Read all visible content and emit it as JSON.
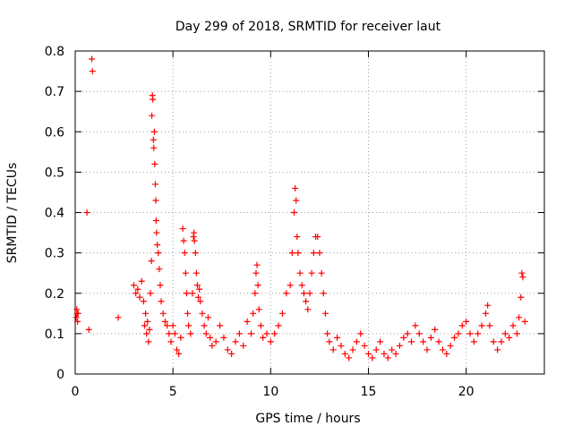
{
  "chart_data": {
    "type": "scatter",
    "title": "Day 299 of 2018, SRMTID for receiver laut",
    "xlabel": "GPS time / hours",
    "ylabel": "SRMTID / TECUs",
    "xlim": [
      0,
      24
    ],
    "ylim": [
      0,
      0.8
    ],
    "xticks": [
      "0",
      "5",
      "10",
      "15",
      "20"
    ],
    "xtick_values": [
      0,
      5,
      10,
      15,
      20
    ],
    "yticks": [
      "0",
      "0.1",
      "0.2",
      "0.3",
      "0.4",
      "0.5",
      "0.6",
      "0.7",
      "0.8"
    ],
    "ytick_values": [
      0,
      0.1,
      0.2,
      0.3,
      0.4,
      0.5,
      0.6,
      0.7,
      0.8
    ],
    "grid": true,
    "marker": "+",
    "color": "#ff0000",
    "series": [
      {
        "name": "SRMTID",
        "points": [
          [
            0.05,
            0.14
          ],
          [
            0.08,
            0.16
          ],
          [
            0.1,
            0.15
          ],
          [
            0.12,
            0.13
          ],
          [
            0.15,
            0.15
          ],
          [
            0.6,
            0.4
          ],
          [
            0.7,
            0.11
          ],
          [
            0.85,
            0.78
          ],
          [
            0.88,
            0.75
          ],
          [
            2.2,
            0.14
          ],
          [
            3.0,
            0.22
          ],
          [
            3.1,
            0.2
          ],
          [
            3.2,
            0.21
          ],
          [
            3.3,
            0.19
          ],
          [
            3.4,
            0.23
          ],
          [
            3.5,
            0.18
          ],
          [
            3.55,
            0.12
          ],
          [
            3.6,
            0.15
          ],
          [
            3.65,
            0.1
          ],
          [
            3.7,
            0.13
          ],
          [
            3.75,
            0.08
          ],
          [
            3.8,
            0.11
          ],
          [
            3.85,
            0.2
          ],
          [
            3.9,
            0.28
          ],
          [
            3.92,
            0.64
          ],
          [
            3.95,
            0.69
          ],
          [
            3.97,
            0.68
          ],
          [
            4.0,
            0.58
          ],
          [
            4.02,
            0.56
          ],
          [
            4.05,
            0.6
          ],
          [
            4.07,
            0.52
          ],
          [
            4.1,
            0.47
          ],
          [
            4.12,
            0.43
          ],
          [
            4.14,
            0.38
          ],
          [
            4.16,
            0.35
          ],
          [
            4.2,
            0.32
          ],
          [
            4.25,
            0.3
          ],
          [
            4.3,
            0.26
          ],
          [
            4.35,
            0.22
          ],
          [
            4.4,
            0.18
          ],
          [
            4.5,
            0.15
          ],
          [
            4.6,
            0.13
          ],
          [
            4.7,
            0.12
          ],
          [
            4.8,
            0.1
          ],
          [
            4.9,
            0.08
          ],
          [
            5.0,
            0.12
          ],
          [
            5.1,
            0.1
          ],
          [
            5.2,
            0.06
          ],
          [
            5.3,
            0.05
          ],
          [
            5.4,
            0.09
          ],
          [
            5.5,
            0.36
          ],
          [
            5.55,
            0.33
          ],
          [
            5.6,
            0.3
          ],
          [
            5.65,
            0.25
          ],
          [
            5.7,
            0.2
          ],
          [
            5.75,
            0.15
          ],
          [
            5.8,
            0.12
          ],
          [
            5.9,
            0.1
          ],
          [
            6.0,
            0.2
          ],
          [
            6.05,
            0.34
          ],
          [
            6.08,
            0.35
          ],
          [
            6.1,
            0.33
          ],
          [
            6.15,
            0.3
          ],
          [
            6.2,
            0.25
          ],
          [
            6.25,
            0.22
          ],
          [
            6.3,
            0.19
          ],
          [
            6.35,
            0.21
          ],
          [
            6.4,
            0.18
          ],
          [
            6.5,
            0.15
          ],
          [
            6.6,
            0.12
          ],
          [
            6.7,
            0.1
          ],
          [
            6.8,
            0.14
          ],
          [
            6.9,
            0.09
          ],
          [
            7.0,
            0.07
          ],
          [
            7.2,
            0.08
          ],
          [
            7.4,
            0.12
          ],
          [
            7.6,
            0.09
          ],
          [
            7.8,
            0.06
          ],
          [
            8.0,
            0.05
          ],
          [
            8.2,
            0.08
          ],
          [
            8.4,
            0.1
          ],
          [
            8.6,
            0.07
          ],
          [
            8.8,
            0.13
          ],
          [
            9.0,
            0.1
          ],
          [
            9.1,
            0.15
          ],
          [
            9.2,
            0.2
          ],
          [
            9.25,
            0.25
          ],
          [
            9.3,
            0.27
          ],
          [
            9.35,
            0.22
          ],
          [
            9.4,
            0.16
          ],
          [
            9.5,
            0.12
          ],
          [
            9.6,
            0.09
          ],
          [
            9.8,
            0.1
          ],
          [
            10.0,
            0.08
          ],
          [
            10.2,
            0.1
          ],
          [
            10.4,
            0.12
          ],
          [
            10.6,
            0.15
          ],
          [
            10.8,
            0.2
          ],
          [
            11.0,
            0.22
          ],
          [
            11.1,
            0.3
          ],
          [
            11.2,
            0.4
          ],
          [
            11.25,
            0.46
          ],
          [
            11.3,
            0.43
          ],
          [
            11.35,
            0.34
          ],
          [
            11.4,
            0.3
          ],
          [
            11.5,
            0.25
          ],
          [
            11.6,
            0.22
          ],
          [
            11.7,
            0.2
          ],
          [
            11.8,
            0.18
          ],
          [
            11.9,
            0.16
          ],
          [
            12.0,
            0.2
          ],
          [
            12.1,
            0.25
          ],
          [
            12.2,
            0.3
          ],
          [
            12.3,
            0.34
          ],
          [
            12.4,
            0.34
          ],
          [
            12.5,
            0.3
          ],
          [
            12.6,
            0.25
          ],
          [
            12.7,
            0.2
          ],
          [
            12.8,
            0.15
          ],
          [
            12.9,
            0.1
          ],
          [
            13.0,
            0.08
          ],
          [
            13.2,
            0.06
          ],
          [
            13.4,
            0.09
          ],
          [
            13.6,
            0.07
          ],
          [
            13.8,
            0.05
          ],
          [
            14.0,
            0.04
          ],
          [
            14.2,
            0.06
          ],
          [
            14.4,
            0.08
          ],
          [
            14.6,
            0.1
          ],
          [
            14.8,
            0.07
          ],
          [
            15.0,
            0.05
          ],
          [
            15.2,
            0.04
          ],
          [
            15.4,
            0.06
          ],
          [
            15.6,
            0.08
          ],
          [
            15.8,
            0.05
          ],
          [
            16.0,
            0.04
          ],
          [
            16.2,
            0.06
          ],
          [
            16.4,
            0.05
          ],
          [
            16.6,
            0.07
          ],
          [
            16.8,
            0.09
          ],
          [
            17.0,
            0.1
          ],
          [
            17.2,
            0.08
          ],
          [
            17.4,
            0.12
          ],
          [
            17.6,
            0.1
          ],
          [
            17.8,
            0.08
          ],
          [
            18.0,
            0.06
          ],
          [
            18.2,
            0.09
          ],
          [
            18.4,
            0.11
          ],
          [
            18.6,
            0.08
          ],
          [
            18.8,
            0.06
          ],
          [
            19.0,
            0.05
          ],
          [
            19.2,
            0.07
          ],
          [
            19.4,
            0.09
          ],
          [
            19.6,
            0.1
          ],
          [
            19.8,
            0.12
          ],
          [
            20.0,
            0.13
          ],
          [
            20.2,
            0.1
          ],
          [
            20.4,
            0.08
          ],
          [
            20.6,
            0.1
          ],
          [
            20.8,
            0.12
          ],
          [
            21.0,
            0.15
          ],
          [
            21.1,
            0.17
          ],
          [
            21.2,
            0.12
          ],
          [
            21.4,
            0.08
          ],
          [
            21.6,
            0.06
          ],
          [
            21.8,
            0.08
          ],
          [
            22.0,
            0.1
          ],
          [
            22.2,
            0.09
          ],
          [
            22.4,
            0.12
          ],
          [
            22.6,
            0.1
          ],
          [
            22.7,
            0.14
          ],
          [
            22.8,
            0.19
          ],
          [
            22.85,
            0.25
          ],
          [
            22.9,
            0.24
          ],
          [
            23.0,
            0.13
          ]
        ]
      }
    ]
  }
}
